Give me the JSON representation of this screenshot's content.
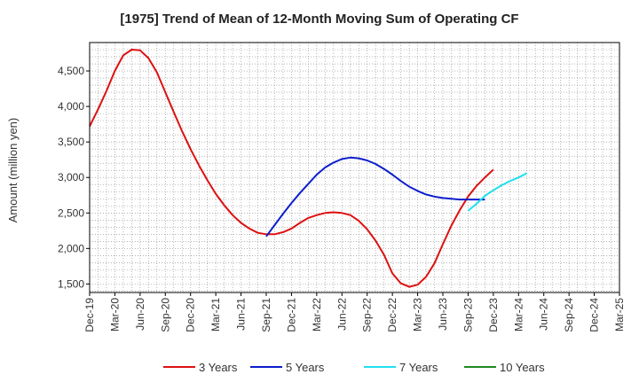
{
  "chart_data": {
    "type": "line",
    "title": "[1975]  Trend of Mean of 12-Month Moving Sum of Operating CF",
    "xlabel": "",
    "ylabel": "Amount (million yen)",
    "ylim": [
      1380,
      4900
    ],
    "yticks": [
      1500,
      2000,
      2500,
      3000,
      3500,
      4000,
      4500
    ],
    "ytick_labels": [
      "1,500",
      "2,000",
      "2,500",
      "3,000",
      "3,500",
      "4,000",
      "4,500"
    ],
    "x_start": "Dec-19",
    "x_end": "Mar-25",
    "tick_labels": [
      "Dec-19",
      "Mar-20",
      "Jun-20",
      "Sep-20",
      "Dec-20",
      "Mar-21",
      "Jun-21",
      "Sep-21",
      "Dec-21",
      "Mar-22",
      "Jun-22",
      "Sep-22",
      "Dec-22",
      "Mar-23",
      "Jun-23",
      "Sep-23",
      "Dec-23",
      "Mar-24",
      "Jun-24",
      "Sep-24",
      "Dec-24",
      "Mar-25"
    ],
    "grid": true,
    "legend_position": "bottom",
    "series": [
      {
        "name": "3 Years",
        "color": "#dd1111",
        "start": "Dec-19",
        "values": [
          3720,
          3960,
          4220,
          4500,
          4720,
          4800,
          4790,
          4680,
          4480,
          4200,
          3920,
          3650,
          3400,
          3170,
          2960,
          2770,
          2610,
          2470,
          2360,
          2280,
          2220,
          2200,
          2200,
          2230,
          2280,
          2360,
          2430,
          2470,
          2500,
          2510,
          2500,
          2470,
          2390,
          2270,
          2110,
          1910,
          1650,
          1510,
          1460,
          1490,
          1600,
          1790,
          2060,
          2320,
          2540,
          2730,
          2880,
          3000,
          3110
        ]
      },
      {
        "name": "5 Years",
        "color": "#0d1ecc",
        "start": "Sep-21",
        "values": [
          2170,
          2330,
          2490,
          2640,
          2780,
          2910,
          3040,
          3140,
          3210,
          3260,
          3280,
          3270,
          3240,
          3190,
          3120,
          3040,
          2950,
          2870,
          2810,
          2760,
          2730,
          2710,
          2700,
          2690,
          2690,
          2690,
          2690
        ]
      },
      {
        "name": "7 Years",
        "color": "#22e0ee",
        "start": "Sep-23",
        "values": [
          2530,
          2630,
          2740,
          2820,
          2890,
          2950,
          3000,
          3060
        ]
      },
      {
        "name": "10 Years",
        "color": "#228822",
        "start": "Sep-23",
        "values": []
      }
    ]
  }
}
